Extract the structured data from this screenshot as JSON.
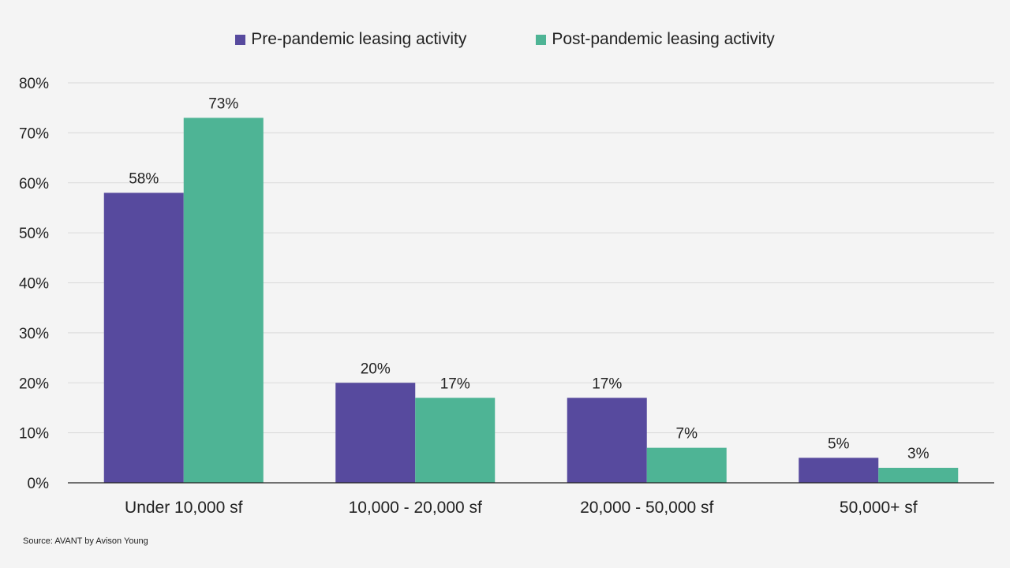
{
  "chart_data": {
    "type": "bar",
    "categories": [
      "Under 10,000 sf",
      "10,000 - 20,000 sf",
      "20,000 - 50,000 sf",
      "50,000+ sf"
    ],
    "series": [
      {
        "name": "Pre-pandemic leasing activity",
        "values": [
          58,
          20,
          17,
          5
        ],
        "labels": [
          "58%",
          "20%",
          "17%",
          "5%"
        ],
        "color": "#574a9e"
      },
      {
        "name": "Post-pandemic leasing activity",
        "values": [
          73,
          17,
          7,
          3
        ],
        "labels": [
          "73%",
          "17%",
          "7%",
          "3%"
        ],
        "color": "#4eb495"
      }
    ],
    "ylim": [
      0,
      80
    ],
    "yticks": [
      0,
      10,
      20,
      30,
      40,
      50,
      60,
      70,
      80
    ],
    "ytick_labels": [
      "0%",
      "10%",
      "20%",
      "30%",
      "40%",
      "50%",
      "60%",
      "70%",
      "80%"
    ],
    "grid": true,
    "legend_position": "top-center",
    "title": "",
    "xlabel": "",
    "ylabel": ""
  },
  "legend": {
    "pre_label": "Pre-pandemic leasing activity",
    "post_label": "Post-pandemic leasing activity"
  },
  "source": "Source:  AVANT by Avison Young",
  "colors": {
    "background": "#f4f4f4",
    "grid": "#d9d9d9",
    "axis": "#222222"
  }
}
